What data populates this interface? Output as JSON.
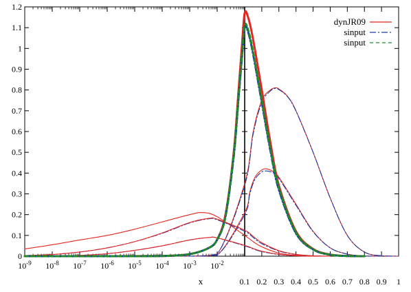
{
  "chart_data": {
    "type": "line",
    "xlabel": "x",
    "title": "",
    "ylabel": "",
    "grid": false,
    "legend_placement": "top-right",
    "x_scale_left": "log",
    "x_scale_right": "linear",
    "x_split": 0.1,
    "ylim": [
      0,
      1.2
    ],
    "y_ticks": [
      "0",
      "0.1",
      "0.2",
      "0.3",
      "0.4",
      "0.5",
      "0.6",
      "0.7",
      "0.8",
      "0.9",
      "1",
      "1.1",
      "1.2"
    ],
    "y_tick_values": [
      0,
      0.1,
      0.2,
      0.3,
      0.4,
      0.5,
      0.6,
      0.7,
      0.8,
      0.9,
      1.0,
      1.1,
      1.2
    ],
    "x_log_ticks": [
      {
        "value": 1e-09,
        "base": "10",
        "exp": "-9"
      },
      {
        "value": 1e-08,
        "base": "10",
        "exp": "-8"
      },
      {
        "value": 1e-07,
        "base": "10",
        "exp": "-7"
      },
      {
        "value": 1e-06,
        "base": "10",
        "exp": "-6"
      },
      {
        "value": 1e-05,
        "base": "10",
        "exp": "-5"
      },
      {
        "value": 0.0001,
        "base": "10",
        "exp": "-4"
      },
      {
        "value": 0.001,
        "base": "10",
        "exp": "-3"
      },
      {
        "value": 0.01,
        "base": "10",
        "exp": "-2"
      }
    ],
    "x_lin_ticks": [
      {
        "value": 0.1,
        "label": "0.1"
      },
      {
        "value": 0.2,
        "label": "0.2"
      },
      {
        "value": 0.3,
        "label": "0.3"
      },
      {
        "value": 0.4,
        "label": "0.4"
      },
      {
        "value": 0.5,
        "label": "0.5"
      },
      {
        "value": 0.6,
        "label": "0.6"
      },
      {
        "value": 0.7,
        "label": "0.7"
      },
      {
        "value": 0.8,
        "label": "0.8"
      },
      {
        "value": 0.9,
        "label": "0.9"
      },
      {
        "value": 1.0,
        "label": "1"
      }
    ],
    "legend": [
      {
        "label": "dynJR09",
        "color": "#e8261f",
        "dash": "solid"
      },
      {
        "label": "sinput",
        "color": "#1a3aa8",
        "dash": "dash-dot"
      },
      {
        "label": "sinput",
        "color": "#1f8a2a",
        "dash": "dashed"
      }
    ],
    "series": [
      {
        "group": "peak",
        "style": "dynJR09",
        "bold": true,
        "x": [
          1e-09,
          1e-06,
          0.0001,
          0.001,
          0.005,
          0.01,
          0.02,
          0.04,
          0.06,
          0.08,
          0.1,
          0.12,
          0.15,
          0.2,
          0.25,
          0.3,
          0.4,
          0.5,
          0.6,
          0.7,
          0.8
        ],
        "y": [
          0.0,
          0.0,
          0.001,
          0.01,
          0.04,
          0.08,
          0.2,
          0.5,
          0.8,
          1.02,
          1.17,
          1.15,
          1.04,
          0.8,
          0.55,
          0.34,
          0.12,
          0.035,
          0.008,
          0.001,
          0.0
        ]
      },
      {
        "group": "peak",
        "style": "sinput-dashdot",
        "bold": true,
        "x": [
          1e-09,
          1e-06,
          0.0001,
          0.001,
          0.005,
          0.01,
          0.02,
          0.04,
          0.06,
          0.08,
          0.1,
          0.12,
          0.15,
          0.2,
          0.25,
          0.3,
          0.4,
          0.5,
          0.6,
          0.7,
          0.8
        ],
        "y": [
          0.0,
          0.0,
          0.001,
          0.01,
          0.04,
          0.08,
          0.19,
          0.48,
          0.76,
          0.96,
          1.1,
          1.08,
          0.97,
          0.74,
          0.51,
          0.32,
          0.11,
          0.032,
          0.007,
          0.001,
          0.0
        ]
      },
      {
        "group": "peak",
        "style": "sinput-dashed",
        "bold": true,
        "x": [
          1e-09,
          1e-06,
          0.0001,
          0.001,
          0.005,
          0.01,
          0.02,
          0.04,
          0.06,
          0.08,
          0.1,
          0.12,
          0.15,
          0.2,
          0.25,
          0.3,
          0.4,
          0.5,
          0.6,
          0.7,
          0.8
        ],
        "y": [
          0.0,
          0.0,
          0.001,
          0.01,
          0.04,
          0.08,
          0.19,
          0.49,
          0.77,
          0.97,
          1.11,
          1.09,
          0.98,
          0.75,
          0.52,
          0.33,
          0.115,
          0.033,
          0.007,
          0.001,
          0.0
        ]
      },
      {
        "group": "broad",
        "style": "dynJR09",
        "x": [
          1e-09,
          1e-06,
          0.0001,
          0.001,
          0.01,
          0.1,
          0.15,
          0.2,
          0.25,
          0.28,
          0.3,
          0.35,
          0.4,
          0.5,
          0.6,
          0.7,
          0.8,
          0.9,
          1.0
        ],
        "y": [
          0.0,
          0.0,
          0.0,
          0.0,
          0.01,
          0.35,
          0.6,
          0.75,
          0.8,
          0.81,
          0.805,
          0.77,
          0.7,
          0.5,
          0.28,
          0.1,
          0.02,
          0.002,
          0.0
        ]
      },
      {
        "group": "broad",
        "style": "sinput-dashdot",
        "x": [
          1e-09,
          1e-06,
          0.0001,
          0.001,
          0.01,
          0.1,
          0.15,
          0.2,
          0.25,
          0.28,
          0.3,
          0.35,
          0.4,
          0.5,
          0.6,
          0.7,
          0.8,
          0.9,
          1.0
        ],
        "y": [
          0.0,
          0.0,
          0.0,
          0.0,
          0.01,
          0.34,
          0.59,
          0.74,
          0.795,
          0.808,
          0.802,
          0.768,
          0.698,
          0.5,
          0.28,
          0.1,
          0.02,
          0.002,
          0.0
        ]
      },
      {
        "group": "mid",
        "style": "dynJR09",
        "x": [
          1e-09,
          1e-06,
          0.0001,
          0.001,
          0.01,
          0.1,
          0.13,
          0.16,
          0.2,
          0.23,
          0.27,
          0.3,
          0.4,
          0.5,
          0.6,
          0.7,
          0.8,
          0.9
        ],
        "y": [
          0.0,
          0.0,
          0.0,
          0.0,
          0.005,
          0.21,
          0.31,
          0.38,
          0.415,
          0.42,
          0.405,
          0.38,
          0.25,
          0.12,
          0.04,
          0.01,
          0.001,
          0.0
        ]
      },
      {
        "group": "mid",
        "style": "sinput-dashdot",
        "x": [
          1e-09,
          1e-06,
          0.0001,
          0.001,
          0.01,
          0.1,
          0.13,
          0.16,
          0.2,
          0.23,
          0.27,
          0.3,
          0.4,
          0.5,
          0.6,
          0.7,
          0.8,
          0.9
        ],
        "y": [
          0.0,
          0.0,
          0.0,
          0.0,
          0.005,
          0.2,
          0.3,
          0.37,
          0.405,
          0.41,
          0.4,
          0.375,
          0.245,
          0.118,
          0.04,
          0.01,
          0.001,
          0.0
        ]
      },
      {
        "group": "sea1",
        "style": "dynJR09",
        "x": [
          1e-09,
          1e-08,
          1e-07,
          1e-06,
          1e-05,
          0.0001,
          0.001,
          0.003,
          0.01,
          0.1,
          0.15,
          0.2,
          0.3,
          0.4,
          0.5,
          0.6
        ],
        "y": [
          0.035,
          0.055,
          0.078,
          0.1,
          0.13,
          0.165,
          0.2,
          0.21,
          0.19,
          0.1,
          0.07,
          0.045,
          0.015,
          0.004,
          0.001,
          0.0
        ]
      },
      {
        "group": "sea2",
        "style": "sinput-dashdot",
        "x": [
          1e-09,
          1e-08,
          1e-07,
          1e-06,
          1e-05,
          0.0001,
          0.001,
          0.005,
          0.01,
          0.1,
          0.15,
          0.2,
          0.3,
          0.4,
          0.5,
          0.6
        ],
        "y": [
          0.003,
          0.008,
          0.02,
          0.04,
          0.07,
          0.11,
          0.16,
          0.18,
          0.175,
          0.12,
          0.09,
          0.06,
          0.025,
          0.008,
          0.002,
          0.0
        ]
      },
      {
        "group": "sea2",
        "style": "dynJR09",
        "x": [
          1e-09,
          1e-08,
          1e-07,
          1e-06,
          1e-05,
          0.0001,
          0.001,
          0.005,
          0.01,
          0.1,
          0.15,
          0.2,
          0.3,
          0.4,
          0.5,
          0.6
        ],
        "y": [
          0.003,
          0.008,
          0.02,
          0.04,
          0.07,
          0.112,
          0.162,
          0.182,
          0.178,
          0.125,
          0.095,
          0.065,
          0.027,
          0.009,
          0.002,
          0.0
        ]
      },
      {
        "group": "sea3",
        "style": "sinput-dashdot",
        "x": [
          1e-09,
          1e-08,
          1e-07,
          1e-06,
          1e-05,
          0.0001,
          0.001,
          0.005,
          0.01,
          0.1,
          0.15,
          0.2,
          0.3,
          0.4,
          0.5
        ],
        "y": [
          0.0,
          0.001,
          0.004,
          0.012,
          0.028,
          0.05,
          0.078,
          0.09,
          0.088,
          0.05,
          0.035,
          0.022,
          0.008,
          0.002,
          0.0
        ]
      },
      {
        "group": "sea3",
        "style": "dynJR09",
        "x": [
          1e-09,
          1e-08,
          1e-07,
          1e-06,
          1e-05,
          0.0001,
          0.001,
          0.005,
          0.01,
          0.1,
          0.15,
          0.2,
          0.3,
          0.4,
          0.5
        ],
        "y": [
          0.0,
          0.001,
          0.004,
          0.012,
          0.028,
          0.05,
          0.078,
          0.09,
          0.088,
          0.052,
          0.037,
          0.024,
          0.009,
          0.002,
          0.0
        ]
      }
    ]
  }
}
